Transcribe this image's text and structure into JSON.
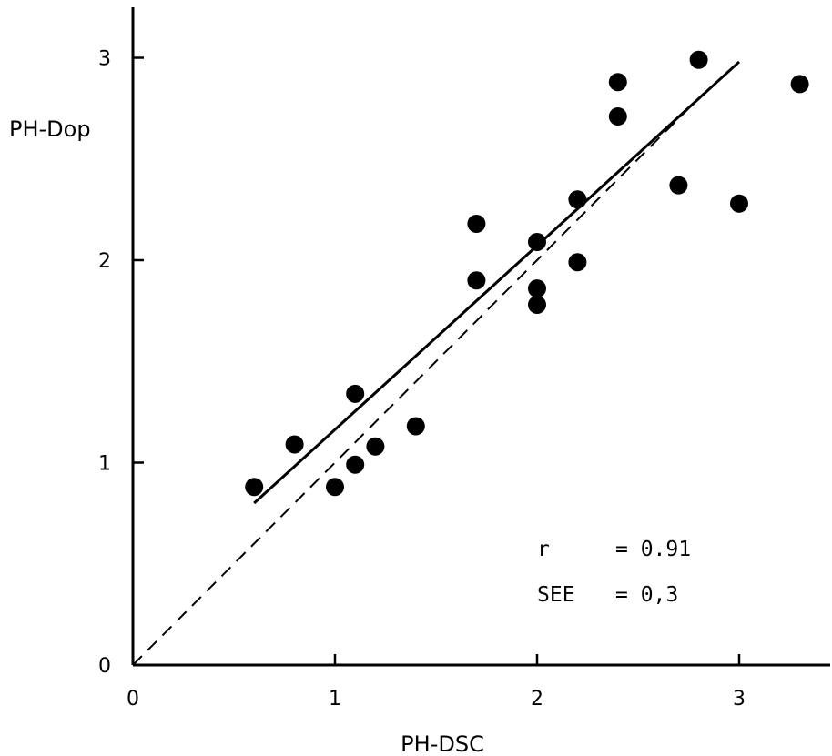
{
  "chart_data": {
    "type": "scatter",
    "title": "",
    "xlabel": "PH-DSC",
    "ylabel": "PH-Dop",
    "xlim": [
      0,
      3.45
    ],
    "ylim": [
      0,
      3.2
    ],
    "x_ticks": [
      "0",
      "1",
      "2",
      "3"
    ],
    "y_ticks": [
      "0",
      "1",
      "2",
      "3"
    ],
    "grid": false,
    "points": [
      {
        "x": 0.6,
        "y": 0.88
      },
      {
        "x": 0.8,
        "y": 1.09
      },
      {
        "x": 1.0,
        "y": 0.88
      },
      {
        "x": 1.1,
        "y": 0.99
      },
      {
        "x": 1.1,
        "y": 1.34
      },
      {
        "x": 1.2,
        "y": 1.08
      },
      {
        "x": 1.4,
        "y": 1.18
      },
      {
        "x": 1.7,
        "y": 1.9
      },
      {
        "x": 1.7,
        "y": 2.18
      },
      {
        "x": 2.0,
        "y": 1.78
      },
      {
        "x": 2.0,
        "y": 1.86
      },
      {
        "x": 2.0,
        "y": 2.09
      },
      {
        "x": 2.2,
        "y": 1.99
      },
      {
        "x": 2.2,
        "y": 2.3
      },
      {
        "x": 2.4,
        "y": 2.71
      },
      {
        "x": 2.4,
        "y": 2.88
      },
      {
        "x": 2.7,
        "y": 2.37
      },
      {
        "x": 2.8,
        "y": 2.99
      },
      {
        "x": 3.0,
        "y": 2.28
      },
      {
        "x": 3.3,
        "y": 2.87
      }
    ],
    "regression_line": {
      "x1": 0.6,
      "y1": 0.8,
      "x2": 3.0,
      "y2": 2.98,
      "style": "solid"
    },
    "identity_line": {
      "x1": 0.0,
      "y1": 0.0,
      "x2": 2.85,
      "y2": 2.85,
      "style": "dashed"
    },
    "annotations": [
      {
        "label": "r",
        "value": "= 0.91"
      },
      {
        "label": "SEE",
        "value": "= 0,3"
      }
    ]
  }
}
